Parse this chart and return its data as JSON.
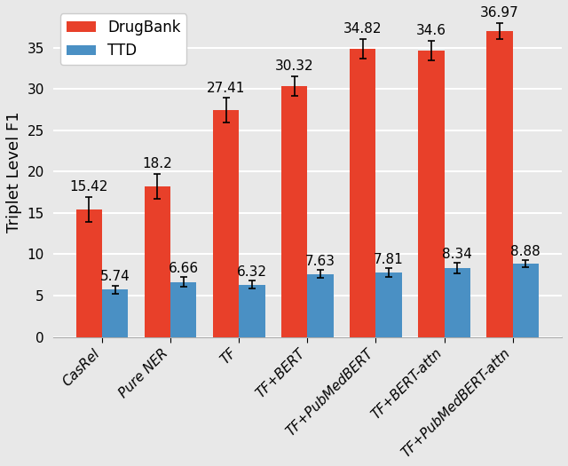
{
  "categories": [
    "CasRel",
    "Pure NER",
    "TF",
    "TF+BERT",
    "TF+PubMedBERT",
    "TF+BERT-attn",
    "TF+PubMedBERT-attn"
  ],
  "drugbank_values": [
    15.42,
    18.2,
    27.41,
    30.32,
    34.82,
    34.6,
    36.97
  ],
  "ttd_values": [
    5.74,
    6.66,
    6.32,
    7.63,
    7.81,
    8.34,
    8.88
  ],
  "drugbank_errors": [
    1.5,
    1.5,
    1.5,
    1.2,
    1.2,
    1.2,
    1.0
  ],
  "ttd_errors": [
    0.5,
    0.6,
    0.5,
    0.5,
    0.5,
    0.6,
    0.4
  ],
  "drugbank_color": "#E8402A",
  "ttd_color": "#4A90C4",
  "ylabel": "Triplet Level F1",
  "ylim": [
    0,
    40
  ],
  "yticks": [
    0,
    5,
    10,
    15,
    20,
    25,
    30,
    35
  ],
  "legend_labels": [
    "DrugBank",
    "TTD"
  ],
  "bar_width": 0.38,
  "background_color": "#E8E8E8",
  "grid_color": "white",
  "figsize": [
    6.4,
    5.25
  ],
  "dpi": 100,
  "label_fontsize": 11,
  "tick_fontsize": 11,
  "ylabel_fontsize": 13,
  "legend_fontsize": 12
}
